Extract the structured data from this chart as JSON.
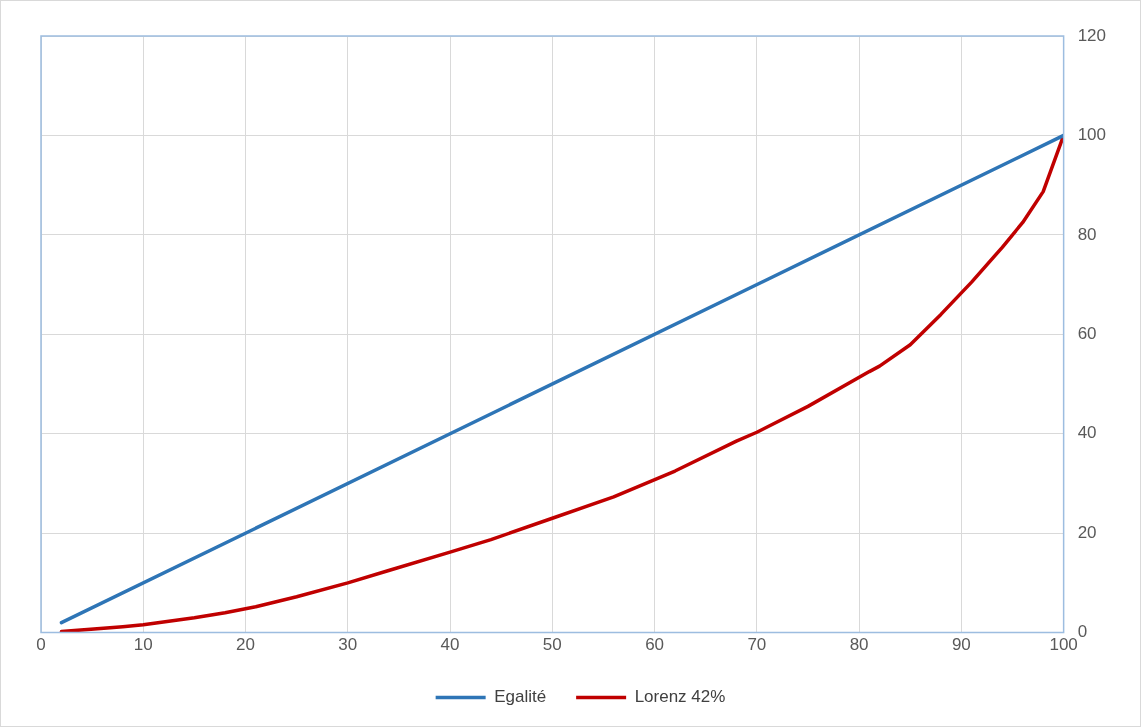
{
  "chart_data": {
    "type": "line",
    "xlim": [
      0,
      100
    ],
    "xticks": [
      0,
      10,
      20,
      30,
      40,
      50,
      60,
      70,
      80,
      90,
      100
    ],
    "ylim": [
      0,
      120
    ],
    "yticks": [
      0,
      20,
      40,
      60,
      80,
      100,
      120
    ],
    "grid": true,
    "legend": "bottom",
    "marker": "none",
    "line_style": "solid",
    "series": [
      {
        "name": "Egalité",
        "color": "#2e75b6",
        "x": [
          2,
          100
        ],
        "values": [
          2,
          100
        ]
      },
      {
        "name": "Lorenz 42%",
        "color": "#c00000",
        "x": [
          2,
          8,
          10,
          15,
          18,
          21,
          25,
          30,
          34,
          40,
          44,
          50,
          56,
          62,
          68,
          70,
          75,
          81,
          82,
          85,
          88,
          91,
          94,
          96,
          98,
          100
        ],
        "values": [
          0.2,
          1.2,
          1.6,
          3,
          4,
          5.2,
          7.2,
          10,
          12.5,
          16.2,
          18.7,
          23,
          27.3,
          32.5,
          38.5,
          40.3,
          45.5,
          52.5,
          53.6,
          57.9,
          64,
          70.5,
          77.5,
          82.5,
          88.7,
          100
        ]
      }
    ]
  }
}
